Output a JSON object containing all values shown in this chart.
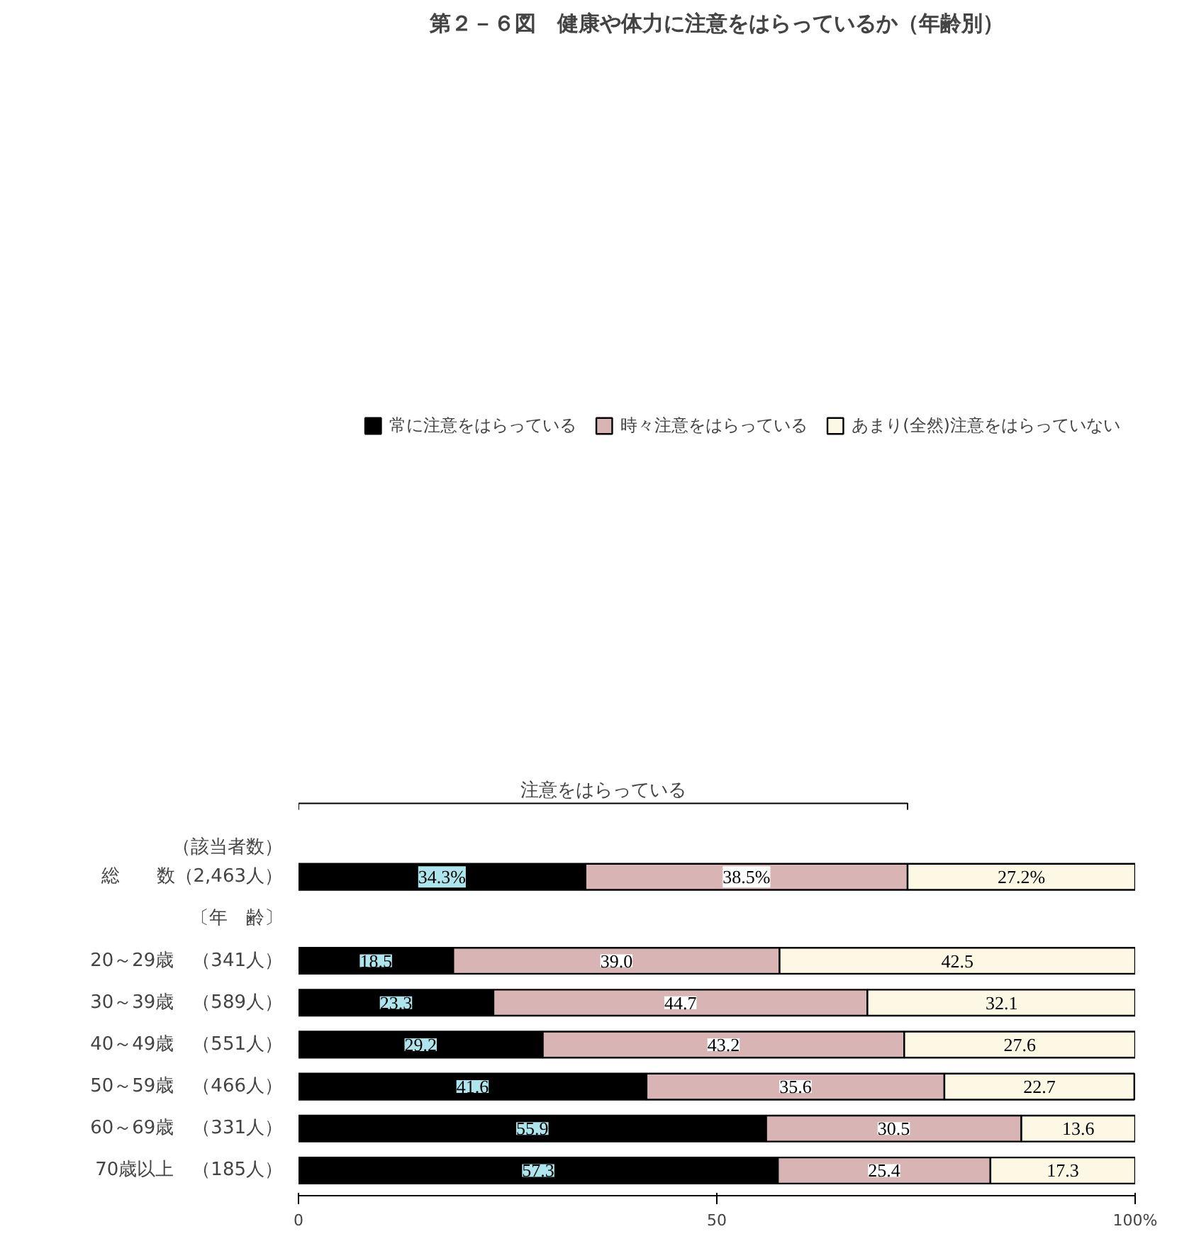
{
  "chart_data": {
    "type": "bar",
    "orientation": "horizontal",
    "stacked": true,
    "title": "第２－６図　健康や体力に注意をはらっているか（年齢別）",
    "categories": [
      "総　　数（2,463人）",
      "〔年　齢〕",
      "20～29歳　（341人）",
      "30～39歳　（589人）",
      "40～49歳　（551人）",
      "50～59歳　（466人）",
      "60～69歳　（331人）",
      "70歳以上　（185人）"
    ],
    "series": [
      {
        "name": "常に注意をはらっている",
        "color": "#000000",
        "values": [
          34.3,
          null,
          18.5,
          23.3,
          29.2,
          41.6,
          55.9,
          57.3
        ],
        "value_labels": [
          "34.3%",
          null,
          "18.5",
          "23.3",
          "29.2",
          "41.6",
          "55.9",
          "57.3"
        ]
      },
      {
        "name": "時々注意をはらっている",
        "color": "#d8b4b4",
        "values": [
          38.5,
          null,
          39.0,
          44.7,
          43.2,
          35.6,
          30.5,
          25.4
        ],
        "value_labels": [
          "38.5%",
          null,
          "39.0",
          "44.7",
          "43.2",
          "35.6",
          "30.5",
          "25.4"
        ]
      },
      {
        "name": "あまり(全然)注意をはらっていない",
        "color": "#fdf8e4",
        "values": [
          27.2,
          null,
          42.5,
          32.1,
          27.6,
          22.7,
          13.6,
          17.3
        ],
        "value_labels": [
          "27.2%",
          null,
          "42.5",
          "32.1",
          "27.6",
          "22.7",
          "13.6",
          "17.3"
        ]
      }
    ],
    "legend": "top",
    "xlim": [
      0,
      100
    ],
    "xticks": [
      0,
      50,
      {
        "value": 100,
        "label": "100%"
      }
    ],
    "annotations": [
      "（該当者数）",
      "注意をはらっている"
    ]
  }
}
